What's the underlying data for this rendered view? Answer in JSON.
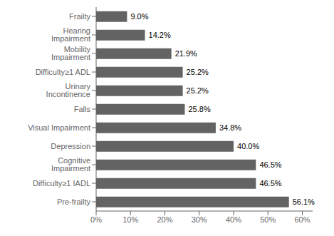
{
  "chart_data": {
    "type": "bar",
    "orientation": "horizontal",
    "categories": [
      "Pre-frailty",
      "Difficulty≥1 IADL",
      "Cognitive Impairment",
      "Depression",
      "Visual Impairment",
      "Falls",
      "Urinary Incontinence",
      "Difficulty≥1 ADL",
      "Mobility Impairment",
      "Hearing Impairment",
      "Frailty"
    ],
    "values": [
      56.1,
      46.5,
      46.5,
      40.0,
      34.8,
      25.8,
      25.2,
      25.2,
      21.9,
      14.2,
      9.0
    ],
    "value_labels": [
      "56.1%",
      "46.5%",
      "46.5%",
      "40.0%",
      "34.8%",
      "25.8%",
      "25.2%",
      "25.2%",
      "21.9%",
      "14.2%",
      "9.0%"
    ],
    "data_labels": true,
    "color": "#636363",
    "xlim": [
      0,
      63
    ],
    "xticks": [
      {
        "value": 0,
        "label": "0%"
      },
      {
        "value": 10,
        "label": "10%"
      },
      {
        "value": 20,
        "label": "20%"
      },
      {
        "value": 30,
        "label": "30%"
      },
      {
        "value": 40,
        "label": "40%"
      },
      {
        "value": 50,
        "label": "50%"
      },
      {
        "value": 60,
        "label": "60%"
      }
    ],
    "grid": false
  }
}
